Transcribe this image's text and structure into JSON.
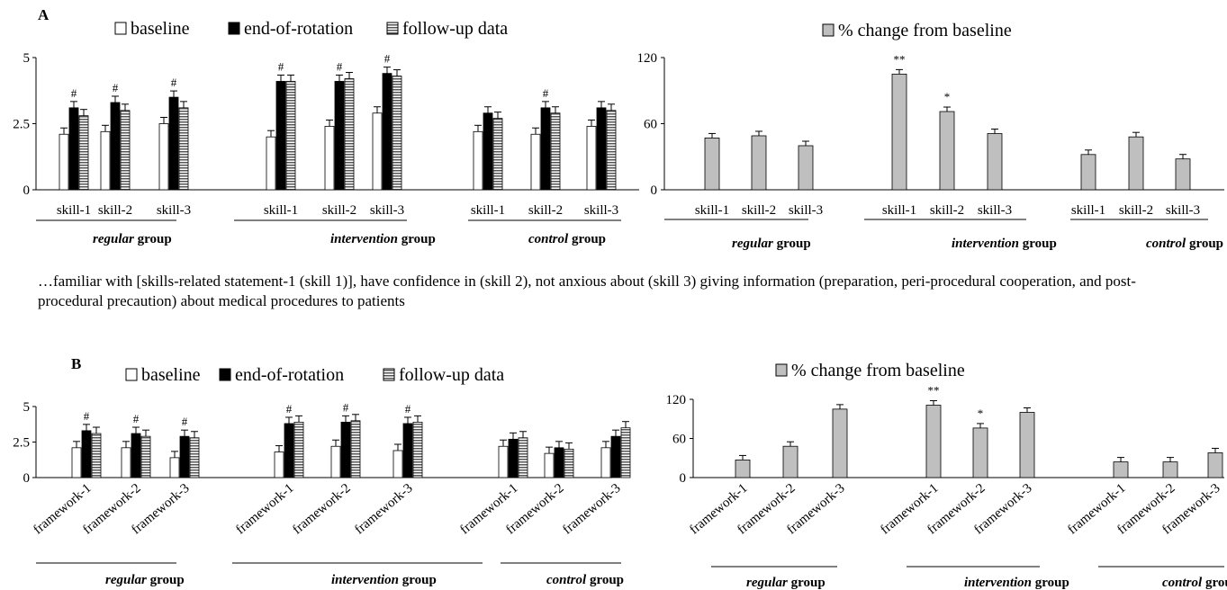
{
  "figure": {
    "sentence": "…familiar with [skills-related statement-1 (skill 1)], have confidence in (skill 2), not anxious about (skill 3) giving information (preparation, peri-procedural cooperation, and post-procedural precaution) about medical procedures to patients",
    "colors": {
      "baseline": "#ffffff",
      "end_of_rotation": "#000000",
      "follow_up": "#9a9a9a",
      "percent_change": "#bfbfbf"
    }
  },
  "chart_data": [
    {
      "id": "A-left",
      "panel_label": "A",
      "type": "bar",
      "legend": [
        "baseline",
        "end-of-rotation",
        "follow-up data"
      ],
      "legend_position": "top",
      "ylim": [
        0,
        5
      ],
      "yticks": [
        "0",
        "2.5",
        "5"
      ],
      "groups": [
        {
          "name_italic": "regular",
          "name_rest": " group",
          "categories": [
            "skill-1",
            "skill-2",
            "skill-3"
          ]
        },
        {
          "name_italic": "intervention",
          "name_rest": " group",
          "categories": [
            "skill-1",
            "skill-2",
            "skill-3"
          ]
        },
        {
          "name_italic": "control",
          "name_rest": " group",
          "categories": [
            "skill-1",
            "skill-2",
            "skill-3"
          ]
        }
      ],
      "series": [
        {
          "name": "baseline",
          "values": [
            2.1,
            2.2,
            2.5,
            2.0,
            2.4,
            2.9,
            2.2,
            2.1,
            2.4
          ]
        },
        {
          "name": "end-of-rotation",
          "values": [
            3.1,
            3.3,
            3.5,
            4.1,
            4.1,
            4.4,
            2.9,
            3.1,
            3.1
          ]
        },
        {
          "name": "follow-up data",
          "values": [
            2.8,
            3.0,
            3.1,
            4.1,
            4.2,
            4.3,
            2.7,
            2.9,
            3.0
          ]
        }
      ],
      "markers": [
        {
          "series": 1,
          "index": 0,
          "text": "#"
        },
        {
          "series": 1,
          "index": 1,
          "text": "#"
        },
        {
          "series": 1,
          "index": 2,
          "text": "#"
        },
        {
          "series": 1,
          "index": 3,
          "text": "#"
        },
        {
          "series": 1,
          "index": 4,
          "text": "#"
        },
        {
          "series": 1,
          "index": 5,
          "text": "#"
        },
        {
          "series": 1,
          "index": 7,
          "text": "#"
        }
      ]
    },
    {
      "id": "A-right",
      "type": "bar",
      "legend": [
        "% change from baseline"
      ],
      "legend_position": "top",
      "ylim": [
        0,
        120
      ],
      "yticks": [
        "0",
        "60",
        "120"
      ],
      "groups": [
        {
          "name_italic": "regular",
          "name_rest": " group",
          "categories": [
            "skill-1",
            "skill-2",
            "skill-3"
          ]
        },
        {
          "name_italic": "intervention",
          "name_rest": " group",
          "categories": [
            "skill-1",
            "skill-2",
            "skill-3"
          ]
        },
        {
          "name_italic": "control",
          "name_rest": " group",
          "categories": [
            "skill-1",
            "skill-2",
            "skill-3"
          ]
        }
      ],
      "series": [
        {
          "name": "% change from baseline",
          "values": [
            47,
            49,
            40,
            105,
            71,
            51,
            32,
            48,
            28
          ]
        }
      ],
      "markers": [
        {
          "series": 0,
          "index": 3,
          "text": "**"
        },
        {
          "series": 0,
          "index": 4,
          "text": "*"
        }
      ]
    },
    {
      "id": "B-left",
      "panel_label": "B",
      "type": "bar",
      "legend": [
        "baseline",
        "end-of-rotation",
        "follow-up data"
      ],
      "legend_position": "top",
      "ylim": [
        0,
        5
      ],
      "yticks": [
        "0",
        "2.5",
        "5"
      ],
      "groups": [
        {
          "name_italic": "regular",
          "name_rest": " group",
          "categories": [
            "framework-1",
            "framework-2",
            "framework-3"
          ]
        },
        {
          "name_italic": "intervention",
          "name_rest": " group",
          "categories": [
            "framework-1",
            "framework-2",
            "framework-3"
          ]
        },
        {
          "name_italic": "control",
          "name_rest": " group",
          "categories": [
            "framework-1",
            "framework-2",
            "framework-3"
          ]
        }
      ],
      "series": [
        {
          "name": "baseline",
          "values": [
            2.1,
            2.1,
            1.4,
            1.8,
            2.2,
            1.9,
            2.2,
            1.7,
            2.1
          ]
        },
        {
          "name": "end-of-rotation",
          "values": [
            3.3,
            3.1,
            2.9,
            3.8,
            3.9,
            3.8,
            2.7,
            2.1,
            2.9
          ]
        },
        {
          "name": "follow-up data",
          "values": [
            3.1,
            2.9,
            2.8,
            3.9,
            4.0,
            3.9,
            2.8,
            2.0,
            3.5
          ]
        }
      ],
      "markers": [
        {
          "series": 1,
          "index": 0,
          "text": "#"
        },
        {
          "series": 1,
          "index": 1,
          "text": "#"
        },
        {
          "series": 1,
          "index": 2,
          "text": "#"
        },
        {
          "series": 1,
          "index": 3,
          "text": "#"
        },
        {
          "series": 1,
          "index": 4,
          "text": "#"
        },
        {
          "series": 1,
          "index": 5,
          "text": "#"
        }
      ]
    },
    {
      "id": "B-right",
      "type": "bar",
      "legend": [
        "% change from baseline"
      ],
      "legend_position": "top",
      "ylim": [
        0,
        120
      ],
      "yticks": [
        "0",
        "60",
        "120"
      ],
      "groups": [
        {
          "name_italic": "regular",
          "name_rest": " group",
          "categories": [
            "framework-1",
            "framework-2",
            "framework-3"
          ]
        },
        {
          "name_italic": "intervention",
          "name_rest": " group",
          "categories": [
            "framework-1",
            "framework-2",
            "framework-3"
          ]
        },
        {
          "name_italic": "control",
          "name_rest": " group",
          "categories": [
            "framework-1",
            "framework-2",
            "framework-3"
          ]
        }
      ],
      "series": [
        {
          "name": "% change from baseline",
          "values": [
            27,
            48,
            105,
            111,
            76,
            100,
            24,
            24,
            38
          ]
        }
      ],
      "markers": [
        {
          "series": 0,
          "index": 3,
          "text": "**"
        },
        {
          "series": 0,
          "index": 4,
          "text": "*"
        }
      ]
    }
  ]
}
